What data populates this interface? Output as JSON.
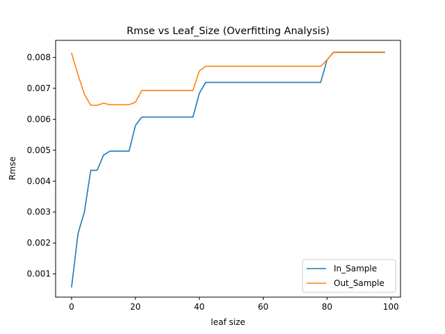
{
  "chart_data": {
    "type": "line",
    "title": "Rmse vs Leaf_Size (Overfitting Analysis)",
    "xlabel": "leaf size",
    "ylabel": "Rmse",
    "xlim": [
      -5,
      103
    ],
    "ylim": [
      0.00025,
      0.00855
    ],
    "xticks": [
      0,
      20,
      40,
      60,
      80,
      100
    ],
    "yticks": [
      0.001,
      0.002,
      0.003,
      0.004,
      0.005,
      0.006,
      0.007,
      0.008
    ],
    "x": [
      0,
      2,
      4,
      6,
      8,
      10,
      12,
      14,
      16,
      18,
      20,
      22,
      24,
      26,
      28,
      30,
      32,
      34,
      36,
      38,
      40,
      42,
      44,
      46,
      48,
      50,
      52,
      54,
      56,
      58,
      60,
      62,
      64,
      66,
      68,
      70,
      72,
      74,
      76,
      78,
      80,
      82,
      84,
      86,
      88,
      90,
      92,
      94,
      96,
      98
    ],
    "series": [
      {
        "name": "In_Sample",
        "color": "#1f77b4",
        "values": [
          0.00058,
          0.0023,
          0.003,
          0.00435,
          0.00435,
          0.00484,
          0.00497,
          0.00497,
          0.00497,
          0.00497,
          0.0058,
          0.00607,
          0.00607,
          0.00607,
          0.00607,
          0.00607,
          0.00607,
          0.00607,
          0.00607,
          0.00607,
          0.00684,
          0.00719,
          0.00719,
          0.00719,
          0.00719,
          0.00719,
          0.00719,
          0.00719,
          0.00719,
          0.00719,
          0.00719,
          0.00719,
          0.00719,
          0.00719,
          0.00719,
          0.00719,
          0.00719,
          0.00719,
          0.00719,
          0.00719,
          0.00792,
          0.00816,
          0.00816,
          0.00816,
          0.00816,
          0.00816,
          0.00816,
          0.00816,
          0.00816,
          0.00816
        ]
      },
      {
        "name": "Out_Sample",
        "color": "#ff7f0e",
        "values": [
          0.00813,
          0.00744,
          0.00681,
          0.00645,
          0.00645,
          0.00652,
          0.00647,
          0.00647,
          0.00647,
          0.00647,
          0.00655,
          0.00693,
          0.00693,
          0.00693,
          0.00693,
          0.00693,
          0.00693,
          0.00693,
          0.00693,
          0.00693,
          0.00756,
          0.00771,
          0.00771,
          0.00771,
          0.00771,
          0.00771,
          0.00771,
          0.00771,
          0.00771,
          0.00771,
          0.00771,
          0.00771,
          0.00771,
          0.00771,
          0.00771,
          0.00771,
          0.00771,
          0.00771,
          0.00771,
          0.00771,
          0.00792,
          0.00817,
          0.00817,
          0.00817,
          0.00817,
          0.00817,
          0.00817,
          0.00817,
          0.00817,
          0.00817
        ]
      }
    ],
    "legend": "lower-right",
    "grid": false
  }
}
